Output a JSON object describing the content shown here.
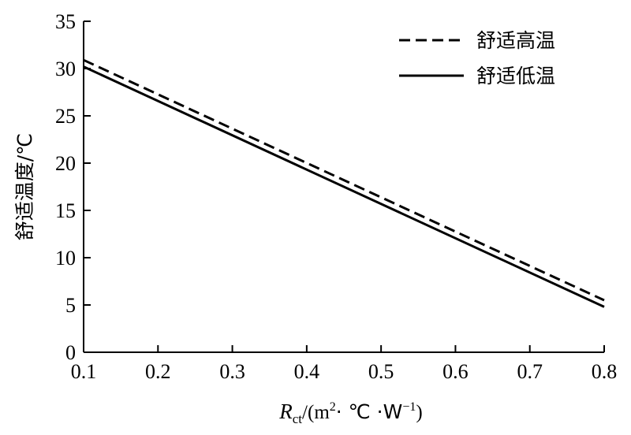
{
  "chart_data": {
    "type": "line",
    "xlabel": {
      "symbol": "R",
      "subscript": "ct",
      "unit_open": "/(m",
      "sup2": "2",
      "unit_mid": "· ℃ ·W",
      "sup_neg1": "−1",
      "unit_close": ")"
    },
    "ylabel": "舒适温度/℃",
    "xlim": [
      0.1,
      0.8
    ],
    "ylim": [
      0,
      35
    ],
    "xticks": [
      "0.1",
      "0.2",
      "0.3",
      "0.4",
      "0.5",
      "0.6",
      "0.7",
      "0.8"
    ],
    "yticks": [
      "0",
      "5",
      "10",
      "15",
      "20",
      "25",
      "30",
      "35"
    ],
    "grid": false,
    "legend_position": "top-right",
    "series": [
      {
        "name": "舒适高温",
        "style": "dashed",
        "color": "#000000",
        "x": [
          0.1,
          0.8
        ],
        "y": [
          30.9,
          5.5
        ]
      },
      {
        "name": "舒适低温",
        "style": "solid",
        "color": "#000000",
        "x": [
          0.1,
          0.8
        ],
        "y": [
          30.2,
          4.8
        ]
      }
    ]
  }
}
